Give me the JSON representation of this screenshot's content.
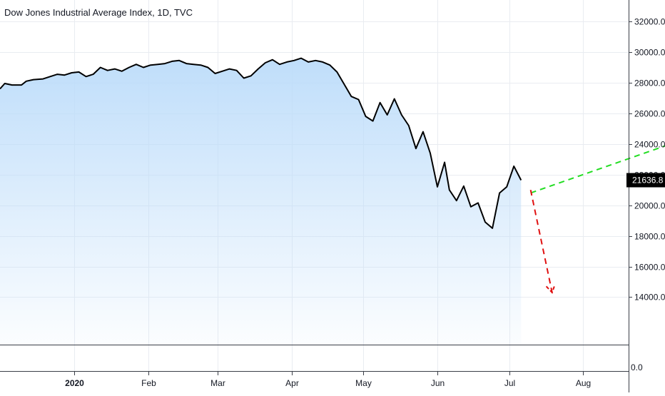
{
  "chart_data": {
    "type": "line",
    "title": "Dow Jones Industrial Average Index, 1D, TVC",
    "last_price_label": "21636.8",
    "y_ticks": [
      "32000.0",
      "30000.0",
      "28000.0",
      "26000.0",
      "24000.0",
      "22000.0",
      "20000.0",
      "18000.0",
      "16000.0",
      "14000.0"
    ],
    "x_ticks": [
      "2020",
      "Feb",
      "Mar",
      "Apr",
      "May",
      "Jun",
      "Jul",
      "Aug"
    ],
    "x_tick_days": [
      31,
      62,
      91,
      122,
      152,
      183,
      213,
      244
    ],
    "sub_pane_tick": "0.0",
    "ylim": [
      10900,
      33400
    ],
    "xlim": [
      0,
      263
    ],
    "grid": true,
    "colors": {
      "line": "#000000",
      "area_top": "#bcdcfa",
      "grid": "#e9ecf1",
      "up_arrow": "#22dd22",
      "down_arrow": "#e01010",
      "label_bg": "#000000",
      "label_text": "#ffffff"
    },
    "series": [
      {
        "values": [
          [
            0,
            27600
          ],
          [
            2,
            27950
          ],
          [
            5,
            27850
          ],
          [
            9,
            27850
          ],
          [
            11,
            28100
          ],
          [
            14,
            28200
          ],
          [
            18,
            28250
          ],
          [
            21,
            28400
          ],
          [
            24,
            28550
          ],
          [
            27,
            28500
          ],
          [
            30,
            28650
          ],
          [
            33,
            28700
          ],
          [
            36,
            28400
          ],
          [
            39,
            28550
          ],
          [
            42,
            29000
          ],
          [
            45,
            28800
          ],
          [
            48,
            28900
          ],
          [
            51,
            28750
          ],
          [
            54,
            29000
          ],
          [
            57,
            29200
          ],
          [
            60,
            29000
          ],
          [
            63,
            29150
          ],
          [
            66,
            29200
          ],
          [
            69,
            29250
          ],
          [
            72,
            29400
          ],
          [
            75,
            29450
          ],
          [
            78,
            29250
          ],
          [
            81,
            29200
          ],
          [
            84,
            29150
          ],
          [
            87,
            29000
          ],
          [
            90,
            28600
          ],
          [
            93,
            28750
          ],
          [
            96,
            28900
          ],
          [
            99,
            28800
          ],
          [
            102,
            28300
          ],
          [
            105,
            28450
          ],
          [
            108,
            28900
          ],
          [
            111,
            29300
          ],
          [
            114,
            29500
          ],
          [
            117,
            29200
          ],
          [
            120,
            29350
          ],
          [
            123,
            29450
          ],
          [
            126,
            29600
          ],
          [
            129,
            29350
          ],
          [
            132,
            29450
          ],
          [
            135,
            29350
          ],
          [
            138,
            29150
          ],
          [
            141,
            28700
          ],
          [
            144,
            27900
          ],
          [
            147,
            27100
          ],
          [
            150,
            26900
          ],
          [
            153,
            25800
          ],
          [
            156,
            25500
          ],
          [
            159,
            26700
          ],
          [
            162,
            25900
          ],
          [
            165,
            26950
          ],
          [
            168,
            25900
          ],
          [
            171,
            25200
          ],
          [
            174,
            23700
          ],
          [
            177,
            24800
          ],
          [
            180,
            23400
          ],
          [
            183,
            21200
          ],
          [
            186,
            22800
          ],
          [
            188,
            21000
          ],
          [
            191,
            20300
          ],
          [
            194,
            21250
          ],
          [
            197,
            19900
          ],
          [
            200,
            20150
          ],
          [
            203,
            18900
          ],
          [
            206,
            18500
          ],
          [
            209,
            20800
          ],
          [
            212,
            21200
          ],
          [
            215,
            22550
          ],
          [
            218,
            21636.8
          ]
        ]
      }
    ],
    "annotations": [
      {
        "style": "dashed-arrow",
        "color": "#22dd22",
        "from": [
          222,
          20800
        ],
        "to": [
          308,
          25500
        ]
      },
      {
        "style": "dashed-arrow",
        "color": "#e01010",
        "from": [
          222,
          21000
        ],
        "to": [
          231,
          14300
        ]
      }
    ]
  }
}
